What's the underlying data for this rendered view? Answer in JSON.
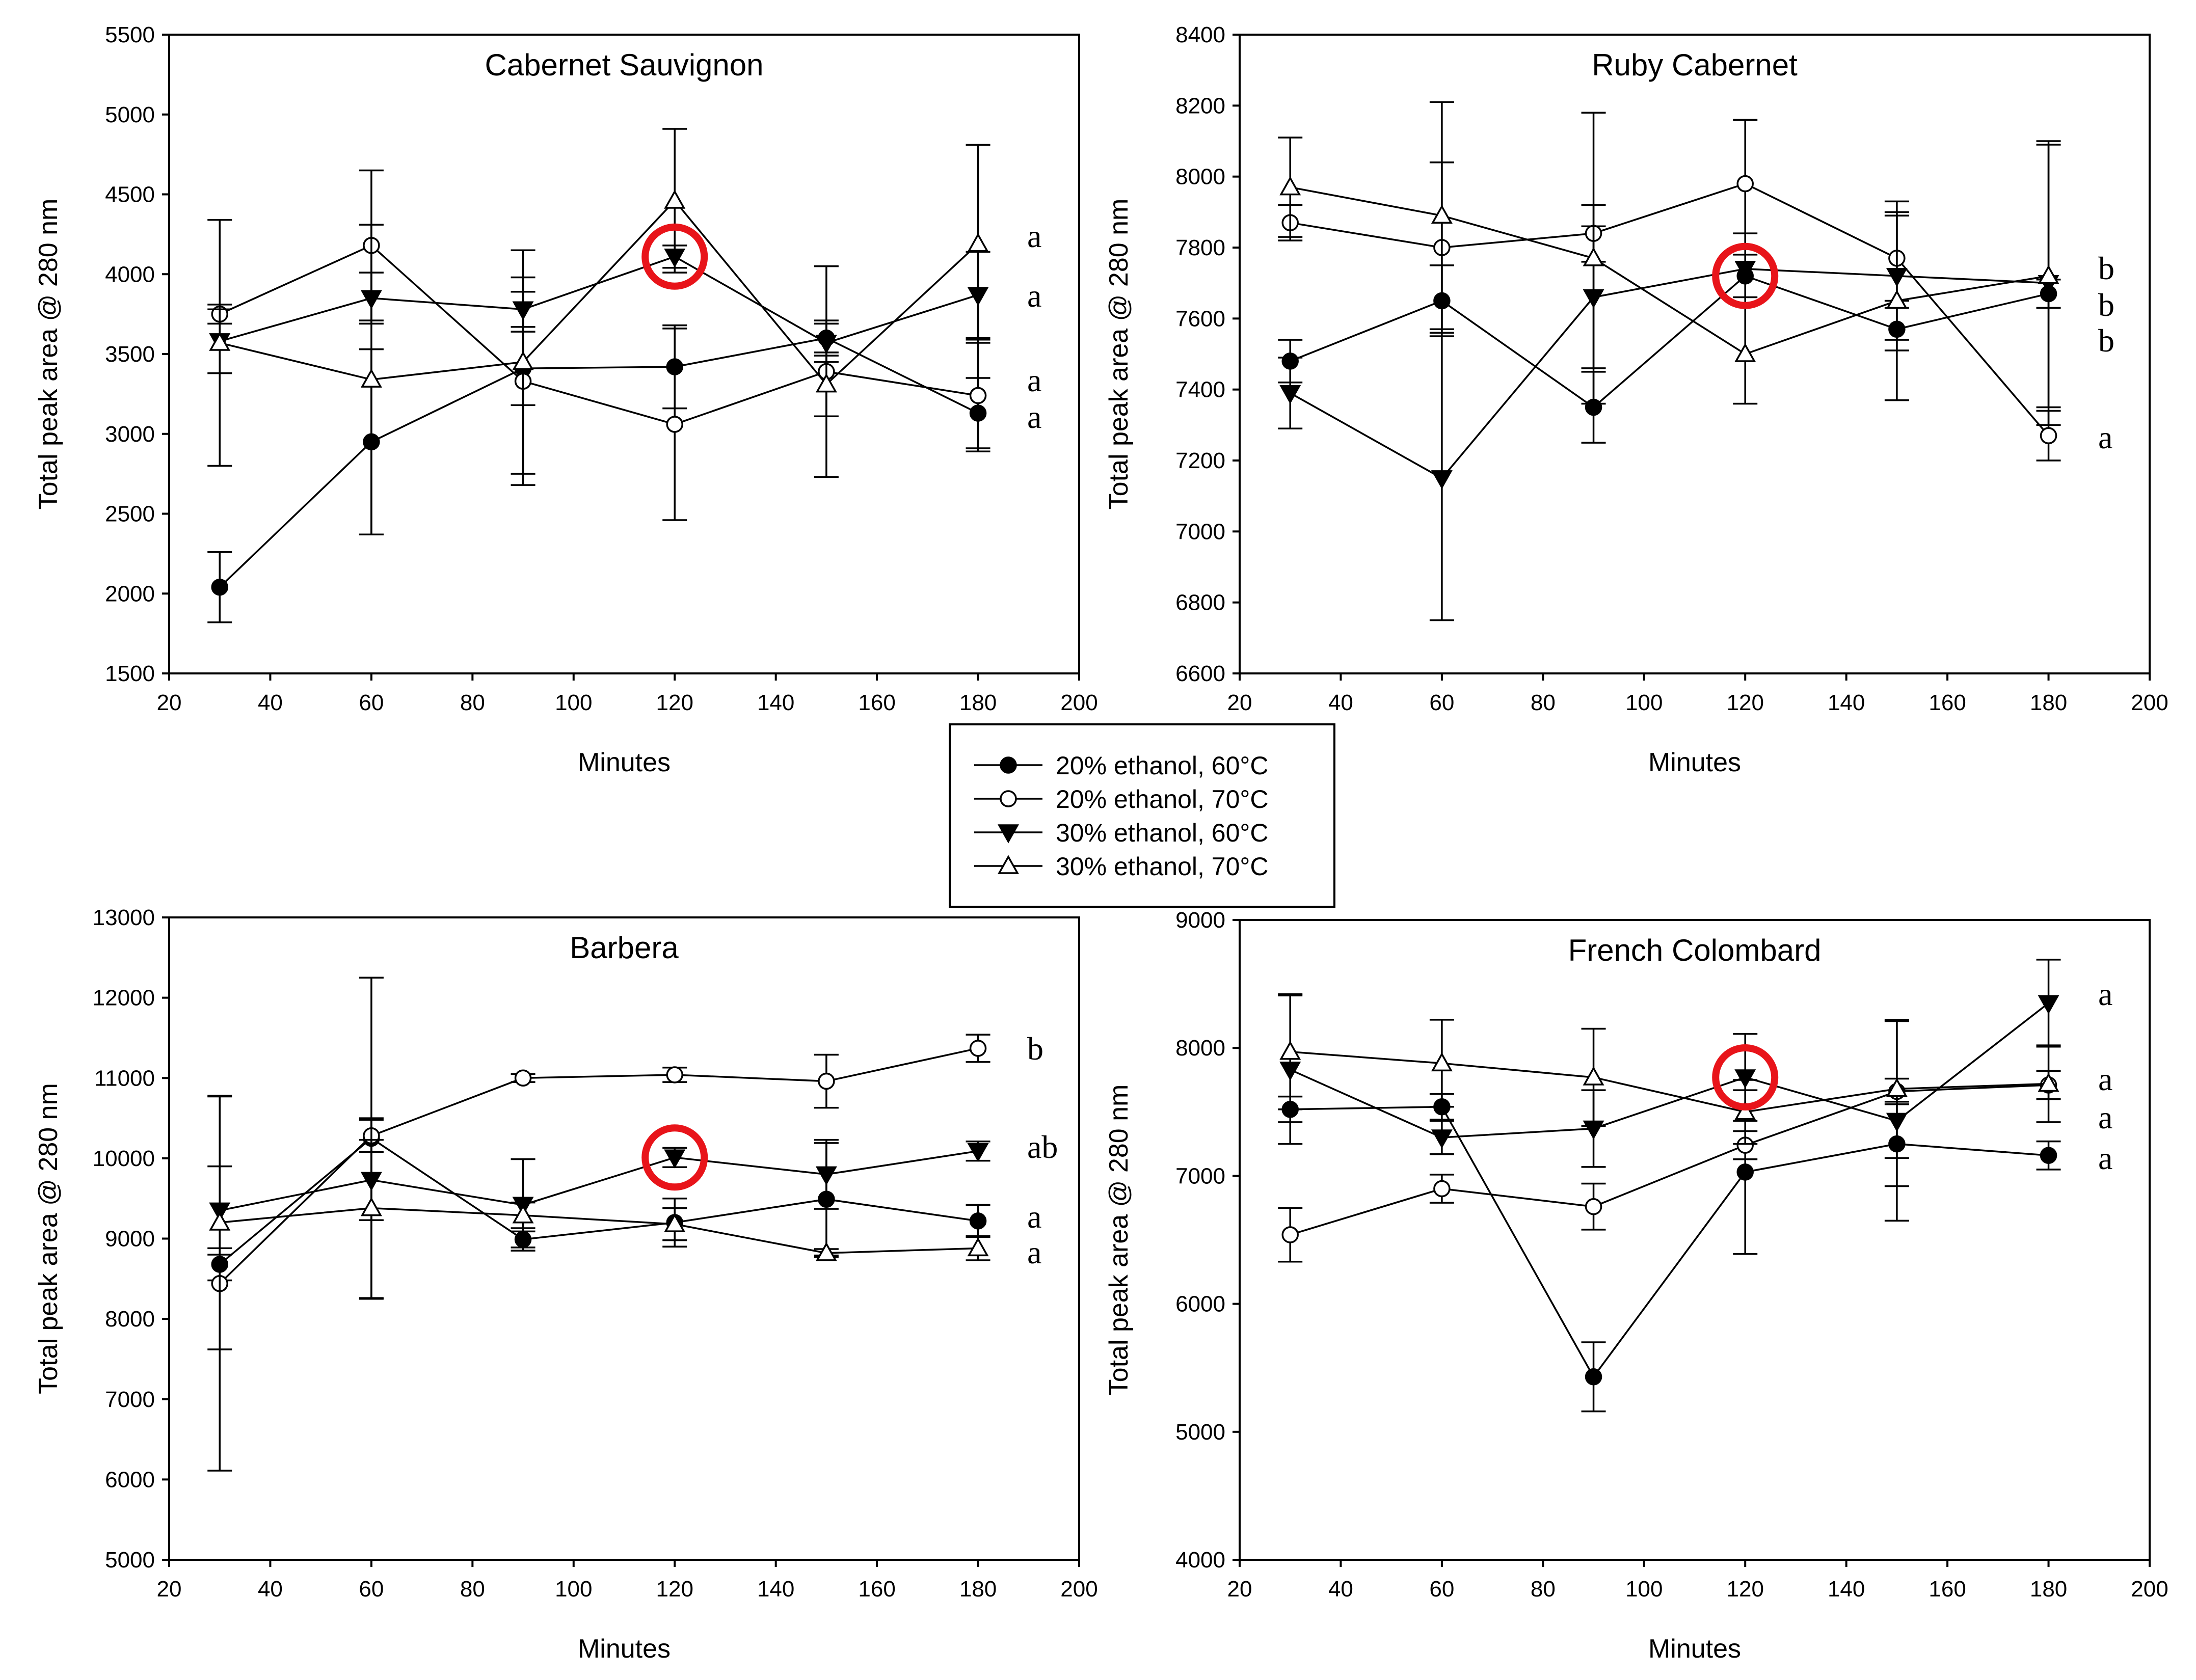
{
  "legend": {
    "entries": [
      {
        "label": "20% ethanol, 60°C",
        "marker": "circle",
        "filled": true
      },
      {
        "label": "20% ethanol, 70°C",
        "marker": "circle",
        "filled": false
      },
      {
        "label": "30% ethanol, 60°C",
        "marker": "triangle-down",
        "filled": true
      },
      {
        "label": "30% ethanol, 70°C",
        "marker": "triangle-up",
        "filled": false
      }
    ]
  },
  "chart_data": [
    {
      "type": "line",
      "title": "Cabernet Sauvignon",
      "xlabel": "Minutes",
      "ylabel": "Total peak area @ 280 nm",
      "xlim": [
        20,
        200
      ],
      "ylim": [
        1500,
        5500
      ],
      "xticks": [
        20,
        40,
        60,
        80,
        100,
        120,
        140,
        160,
        180,
        200
      ],
      "yticks": [
        1500,
        2000,
        2500,
        3000,
        3500,
        4000,
        4500,
        5000,
        5500
      ],
      "x": [
        30,
        60,
        90,
        120,
        150,
        180
      ],
      "series": [
        {
          "name": "20% ethanol, 60°C",
          "values": [
            2040,
            2950,
            3410,
            3420,
            3600,
            3130
          ],
          "errors": [
            220,
            580,
            230,
            260,
            110,
            220
          ],
          "group_label": "a"
        },
        {
          "name": "20% ethanol, 70°C",
          "values": [
            3750,
            4180,
            3330,
            3060,
            3390,
            3240
          ],
          "errors": [
            60,
            470,
            650,
            600,
            660,
            350
          ],
          "group_label": "a"
        },
        {
          "name": "30% ethanol, 60°C",
          "values": [
            3580,
            3850,
            3780,
            4110,
            3570,
            3870
          ],
          "errors": [
            200,
            160,
            110,
            70,
            120,
            270
          ],
          "group_label": "a"
        },
        {
          "name": "30% ethanol, 70°C",
          "values": [
            3570,
            3340,
            3450,
            4460,
            3310,
            4190
          ],
          "errors": [
            770,
            970,
            700,
            450,
            200,
            620
          ],
          "group_label": "a"
        }
      ],
      "highlight_x": 120,
      "highlight_y": 4110
    },
    {
      "type": "line",
      "title": "Ruby Cabernet",
      "xlabel": "Minutes",
      "ylabel": "Total peak area @ 280 nm",
      "xlim": [
        20,
        200
      ],
      "ylim": [
        6600,
        8400
      ],
      "xticks": [
        20,
        40,
        60,
        80,
        100,
        120,
        140,
        160,
        180,
        200
      ],
      "yticks": [
        6600,
        6800,
        7000,
        7200,
        7400,
        7600,
        7800,
        8000,
        8200,
        8400
      ],
      "x": [
        30,
        60,
        90,
        120,
        150,
        180
      ],
      "series": [
        {
          "name": "20% ethanol, 60°C",
          "values": [
            7480,
            7650,
            7350,
            7720,
            7570,
            7670
          ],
          "errors": [
            60,
            100,
            100,
            60,
            60,
            40
          ],
          "group_label": "b"
        },
        {
          "name": "20% ethanol, 70°C",
          "values": [
            7870,
            7800,
            7840,
            7980,
            7770,
            7270
          ],
          "errors": [
            50,
            240,
            80,
            180,
            120,
            70
          ],
          "group_label": "a"
        },
        {
          "name": "30% ethanol, 60°C",
          "values": [
            7390,
            7150,
            7660,
            7740,
            7720,
            7700
          ],
          "errors": [
            100,
            400,
            200,
            100,
            180,
            400
          ],
          "group_label": "b"
        },
        {
          "name": "30% ethanol, 70°C",
          "values": [
            7970,
            7890,
            7770,
            7500,
            7650,
            7720
          ],
          "errors": [
            140,
            320,
            410,
            140,
            280,
            370
          ],
          "group_label": "b"
        }
      ],
      "highlight_x": 120,
      "highlight_y": 7720
    },
    {
      "type": "line",
      "title": "Barbera",
      "xlabel": "Minutes",
      "ylabel": "Total peak area @ 280 nm",
      "xlim": [
        20,
        200
      ],
      "ylim": [
        5000,
        13000
      ],
      "xticks": [
        20,
        40,
        60,
        80,
        100,
        120,
        140,
        160,
        180,
        200
      ],
      "yticks": [
        5000,
        6000,
        7000,
        8000,
        9000,
        10000,
        11000,
        12000,
        13000
      ],
      "x": [
        30,
        60,
        90,
        120,
        150,
        180
      ],
      "series": [
        {
          "name": "20% ethanol, 60°C",
          "values": [
            8680,
            10250,
            8990,
            9200,
            9490,
            9220
          ],
          "errors": [
            200,
            2000,
            100,
            300,
            700,
            200
          ],
          "group_label": "a"
        },
        {
          "name": "20% ethanol, 70°C",
          "values": [
            8440,
            10280,
            11000,
            11040,
            10960,
            11370
          ],
          "errors": [
            2330,
            200,
            50,
            90,
            330,
            170
          ],
          "group_label": "b"
        },
        {
          "name": "30% ethanol, 60°C",
          "values": [
            9350,
            9730,
            9420,
            10010,
            9800,
            10090
          ],
          "errors": [
            550,
            500,
            570,
            120,
            430,
            120
          ],
          "group_label": "ab"
        },
        {
          "name": "30% ethanol, 70°C",
          "values": [
            9200,
            9380,
            9290,
            9180,
            8820,
            8880
          ],
          "errors": [
            1580,
            1120,
            160,
            200,
            50,
            150
          ],
          "group_label": "a"
        }
      ],
      "highlight_x": 120,
      "highlight_y": 10010
    },
    {
      "type": "line",
      "title": "French Colombard",
      "xlabel": "Minutes",
      "ylabel": "Total peak area @ 280 nm",
      "xlim": [
        20,
        200
      ],
      "ylim": [
        4000,
        9000
      ],
      "xticks": [
        20,
        40,
        60,
        80,
        100,
        120,
        140,
        160,
        180,
        200
      ],
      "yticks": [
        4000,
        5000,
        6000,
        7000,
        8000,
        9000
      ],
      "x": [
        30,
        60,
        90,
        120,
        150,
        180
      ],
      "series": [
        {
          "name": "20% ethanol, 60°C",
          "values": [
            7520,
            7540,
            5430,
            7030,
            7250,
            7160
          ],
          "errors": [
            100,
            100,
            270,
            640,
            330,
            110
          ],
          "group_label": "a"
        },
        {
          "name": "20% ethanol, 70°C",
          "values": [
            6540,
            6900,
            6760,
            7240,
            7660,
            7710
          ],
          "errors": [
            210,
            110,
            180,
            110,
            100,
            110
          ],
          "group_label": "a"
        },
        {
          "name": "30% ethanol, 60°C",
          "values": [
            7830,
            7300,
            7370,
            7770,
            7430,
            8350
          ],
          "errors": [
            580,
            130,
            300,
            340,
            780,
            340
          ],
          "group_label": "a"
        },
        {
          "name": "30% ethanol, 70°C",
          "values": [
            7970,
            7880,
            7770,
            7500,
            7680,
            7720
          ],
          "errors": [
            450,
            340,
            380,
            250,
            540,
            300
          ],
          "group_label": "a"
        }
      ],
      "highlight_x": 120,
      "highlight_y": 7770
    }
  ]
}
